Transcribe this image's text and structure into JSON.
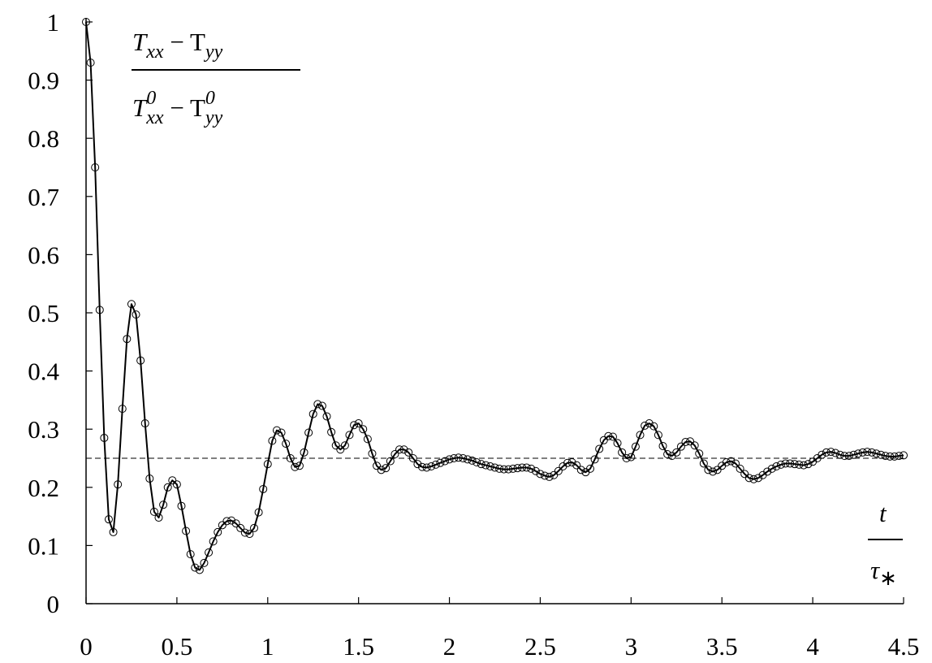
{
  "chart_data": {
    "type": "line",
    "ylabel": {
      "numerator": [
        "T",
        "xx",
        " − T",
        "yy"
      ],
      "denominator": [
        "T",
        "0",
        "xx",
        " − T",
        "0",
        "yy"
      ]
    },
    "xlabel": {
      "numerator": [
        "t"
      ],
      "denominator": [
        "τ",
        "∗"
      ]
    },
    "color": "#000000",
    "marker": "circle-open",
    "reference": 0.25,
    "xlim": [
      0,
      4.5
    ],
    "xticks": [
      0,
      0.5,
      1,
      1.5,
      2,
      2.5,
      3,
      3.5,
      4,
      4.5
    ],
    "ylim": [
      0,
      1
    ],
    "yticks": [
      0,
      0.1,
      0.2,
      0.3,
      0.4,
      0.5,
      0.6,
      0.7,
      0.8,
      0.9,
      1
    ],
    "x": [
      0,
      0.025,
      0.05,
      0.075,
      0.1,
      0.125,
      0.15,
      0.175,
      0.2,
      0.225,
      0.25,
      0.275,
      0.3,
      0.325,
      0.35,
      0.375,
      0.4,
      0.425,
      0.45,
      0.475,
      0.5,
      0.525,
      0.55,
      0.575,
      0.6,
      0.625,
      0.65,
      0.675,
      0.7,
      0.725,
      0.75,
      0.775,
      0.8,
      0.825,
      0.85,
      0.875,
      0.9,
      0.925,
      0.95,
      0.975,
      1,
      1.025,
      1.05,
      1.075,
      1.1,
      1.125,
      1.15,
      1.175,
      1.2,
      1.225,
      1.25,
      1.275,
      1.3,
      1.325,
      1.35,
      1.375,
      1.4,
      1.425,
      1.45,
      1.475,
      1.5,
      1.525,
      1.55,
      1.575,
      1.6,
      1.625,
      1.65,
      1.675,
      1.7,
      1.725,
      1.75,
      1.775,
      1.8,
      1.825,
      1.85,
      1.875,
      1.9,
      1.925,
      1.95,
      1.975,
      2,
      2.025,
      2.05,
      2.075,
      2.1,
      2.125,
      2.15,
      2.175,
      2.2,
      2.225,
      2.25,
      2.275,
      2.3,
      2.325,
      2.35,
      2.375,
      2.4,
      2.425,
      2.45,
      2.475,
      2.5,
      2.525,
      2.55,
      2.575,
      2.6,
      2.625,
      2.65,
      2.675,
      2.7,
      2.725,
      2.75,
      2.775,
      2.8,
      2.825,
      2.85,
      2.875,
      2.9,
      2.925,
      2.95,
      2.975,
      3,
      3.025,
      3.05,
      3.075,
      3.1,
      3.125,
      3.15,
      3.175,
      3.2,
      3.225,
      3.25,
      3.275,
      3.3,
      3.325,
      3.35,
      3.375,
      3.4,
      3.425,
      3.45,
      3.475,
      3.5,
      3.525,
      3.55,
      3.575,
      3.6,
      3.625,
      3.65,
      3.675,
      3.7,
      3.725,
      3.75,
      3.775,
      3.8,
      3.825,
      3.85,
      3.875,
      3.9,
      3.925,
      3.95,
      3.975,
      4,
      4.025,
      4.05,
      4.075,
      4.1,
      4.125,
      4.15,
      4.175,
      4.2,
      4.225,
      4.25,
      4.275,
      4.3,
      4.325,
      4.35,
      4.375,
      4.4,
      4.425,
      4.45,
      4.475,
      4.5
    ],
    "values": [
      1.0,
      0.93,
      0.75,
      0.505,
      0.285,
      0.145,
      0.123,
      0.205,
      0.335,
      0.455,
      0.515,
      0.497,
      0.418,
      0.31,
      0.215,
      0.158,
      0.148,
      0.17,
      0.2,
      0.212,
      0.205,
      0.168,
      0.125,
      0.085,
      0.062,
      0.058,
      0.07,
      0.088,
      0.107,
      0.123,
      0.135,
      0.142,
      0.143,
      0.138,
      0.13,
      0.122,
      0.12,
      0.13,
      0.157,
      0.197,
      0.24,
      0.28,
      0.298,
      0.294,
      0.275,
      0.25,
      0.235,
      0.237,
      0.26,
      0.294,
      0.326,
      0.343,
      0.34,
      0.322,
      0.295,
      0.272,
      0.265,
      0.272,
      0.29,
      0.307,
      0.31,
      0.3,
      0.283,
      0.258,
      0.237,
      0.23,
      0.233,
      0.245,
      0.257,
      0.265,
      0.265,
      0.26,
      0.25,
      0.24,
      0.235,
      0.234,
      0.236,
      0.239,
      0.242,
      0.245,
      0.248,
      0.25,
      0.251,
      0.25,
      0.248,
      0.246,
      0.243,
      0.24,
      0.238,
      0.236,
      0.234,
      0.232,
      0.231,
      0.231,
      0.232,
      0.233,
      0.234,
      0.234,
      0.232,
      0.228,
      0.223,
      0.22,
      0.218,
      0.221,
      0.228,
      0.236,
      0.242,
      0.243,
      0.238,
      0.23,
      0.226,
      0.232,
      0.248,
      0.266,
      0.281,
      0.288,
      0.287,
      0.276,
      0.26,
      0.25,
      0.252,
      0.27,
      0.29,
      0.306,
      0.31,
      0.305,
      0.29,
      0.271,
      0.257,
      0.254,
      0.26,
      0.27,
      0.278,
      0.279,
      0.272,
      0.258,
      0.241,
      0.23,
      0.227,
      0.23,
      0.237,
      0.243,
      0.245,
      0.241,
      0.232,
      0.223,
      0.216,
      0.214,
      0.216,
      0.221,
      0.227,
      0.232,
      0.236,
      0.239,
      0.241,
      0.241,
      0.24,
      0.239,
      0.238,
      0.24,
      0.244,
      0.25,
      0.256,
      0.26,
      0.261,
      0.259,
      0.256,
      0.254,
      0.254,
      0.256,
      0.258,
      0.26,
      0.261,
      0.26,
      0.258,
      0.256,
      0.254,
      0.253,
      0.253,
      0.254,
      0.255
    ]
  }
}
